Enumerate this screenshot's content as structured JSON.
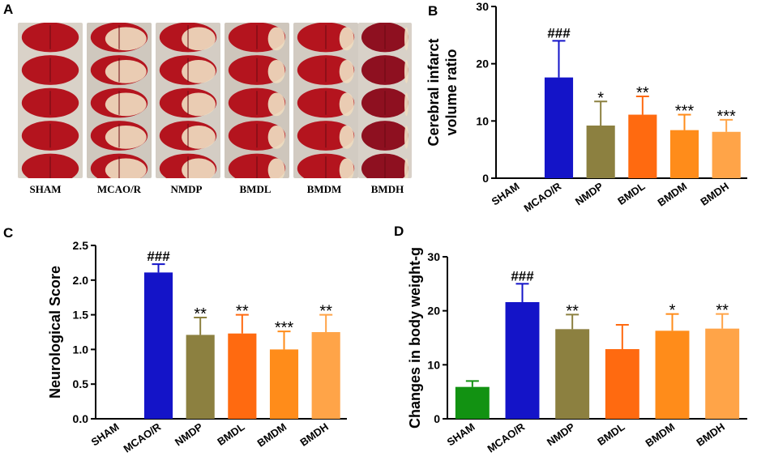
{
  "panels": {
    "a": "A",
    "b": "B",
    "c": "C",
    "d": "D"
  },
  "photo_labels": [
    "SHAM",
    "MCAO/R",
    "NMDP",
    "BMDL",
    "BMDM",
    "BMDH"
  ],
  "colors": {
    "SHAM_d": "#129212",
    "MCAO/R": "#1414c8",
    "NMDP": "#8c8040",
    "BMDL": "#ff6a10",
    "BMDM": "#ff8c1a",
    "BMDH": "#ffa448",
    "tissue_red": "#b4141e",
    "tissue_pale": "#efdcc0"
  },
  "chart_data": [
    {
      "type": "bar",
      "panel": "B",
      "title": "",
      "xlabel": "",
      "ylabel": "Cerebral infarct volume ratio",
      "ylabel_lines": [
        "Cerebral infarct",
        "volume ratio"
      ],
      "categories": [
        "SHAM",
        "MCAO/R",
        "NMDP",
        "BMDL",
        "BMDM",
        "BMDH"
      ],
      "values": [
        0,
        17.6,
        9.2,
        11.1,
        8.4,
        8.1
      ],
      "errors": [
        0,
        6.4,
        4.2,
        3.2,
        2.7,
        2.1
      ],
      "annotations": [
        "",
        "###",
        "*",
        "**",
        "***",
        "***"
      ],
      "ylim": [
        0,
        30
      ],
      "yticks": [
        0,
        10,
        20,
        30
      ],
      "ytick_labels": [
        "0",
        "10",
        "20",
        "30"
      ]
    },
    {
      "type": "bar",
      "panel": "C",
      "title": "",
      "xlabel": "",
      "ylabel": "Neurological Score",
      "ylabel_lines": [
        "Neurological Score"
      ],
      "categories": [
        "SHAM",
        "MCAO/R",
        "NMDP",
        "BMDL",
        "BMDM",
        "BMDH"
      ],
      "values": [
        0,
        2.11,
        1.21,
        1.23,
        1.0,
        1.25
      ],
      "errors": [
        0,
        0.12,
        0.25,
        0.27,
        0.26,
        0.25
      ],
      "annotations": [
        "",
        "###",
        "**",
        "**",
        "***",
        "**"
      ],
      "ylim": [
        0,
        2.5
      ],
      "yticks": [
        0,
        0.5,
        1.0,
        1.5,
        2.0,
        2.5
      ],
      "ytick_labels": [
        "0.0",
        "0.5",
        "1.0",
        "1.5",
        "2.0",
        "2.5"
      ]
    },
    {
      "type": "bar",
      "panel": "D",
      "title": "",
      "xlabel": "",
      "ylabel": "Changes in body weight-g",
      "ylabel_lines": [
        "Changes in body weight-g"
      ],
      "categories": [
        "SHAM",
        "MCAO/R",
        "NMDP",
        "BMDL",
        "BMDM",
        "BMDH"
      ],
      "values": [
        5.9,
        21.6,
        16.6,
        12.9,
        16.3,
        16.7
      ],
      "errors": [
        1.1,
        3.4,
        2.7,
        4.5,
        3.1,
        2.7
      ],
      "annotations": [
        "",
        "###",
        "**",
        "",
        "*",
        "**"
      ],
      "ylim": [
        0,
        30
      ],
      "yticks": [
        0,
        10,
        20,
        30
      ],
      "ytick_labels": [
        "0",
        "10",
        "20",
        "30"
      ]
    }
  ]
}
